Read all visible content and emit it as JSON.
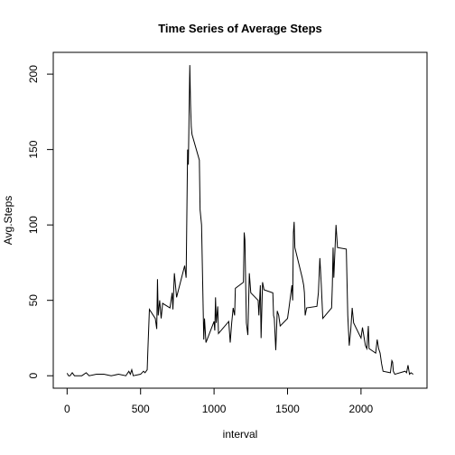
{
  "chart_data": {
    "type": "line",
    "title": "Time Series of Average Steps",
    "xlabel": "interval",
    "ylabel": "Avg.Steps",
    "x": [
      0,
      10,
      20,
      35,
      50,
      100,
      130,
      150,
      200,
      250,
      300,
      350,
      400,
      420,
      430,
      440,
      450,
      500,
      520,
      530,
      545,
      550,
      560,
      600,
      610,
      615,
      620,
      630,
      640,
      650,
      700,
      715,
      720,
      730,
      745,
      800,
      810,
      820,
      825,
      835,
      840,
      845,
      850,
      900,
      905,
      915,
      930,
      935,
      945,
      1000,
      1005,
      1010,
      1015,
      1025,
      1030,
      1100,
      1110,
      1120,
      1130,
      1140,
      1145,
      1200,
      1205,
      1210,
      1220,
      1230,
      1240,
      1250,
      1300,
      1305,
      1315,
      1320,
      1330,
      1340,
      1400,
      1405,
      1410,
      1420,
      1430,
      1440,
      1450,
      1500,
      1510,
      1530,
      1535,
      1540,
      1545,
      1550,
      1600,
      1610,
      1615,
      1620,
      1630,
      1700,
      1710,
      1720,
      1730,
      1740,
      1800,
      1805,
      1810,
      1815,
      1830,
      1840,
      1900,
      1910,
      1920,
      1930,
      1940,
      1950,
      2000,
      2010,
      2030,
      2040,
      2050,
      2055,
      2100,
      2110,
      2120,
      2130,
      2140,
      2150,
      2200,
      2210,
      2215,
      2220,
      2230,
      2300,
      2310,
      2320,
      2330,
      2340,
      2355
    ],
    "values": [
      1.7,
      0,
      0,
      2,
      0,
      0,
      2,
      0,
      1,
      1,
      0,
      1,
      0,
      3,
      1,
      4,
      0,
      1,
      3,
      2,
      4,
      18,
      44,
      38,
      31,
      64,
      40,
      50,
      38,
      48,
      45,
      55,
      44,
      68,
      52,
      73,
      65,
      150,
      140,
      206,
      180,
      165,
      160,
      143,
      110,
      100,
      24,
      38,
      22,
      36,
      30,
      52,
      35,
      46,
      28,
      36,
      22,
      35,
      45,
      40,
      58,
      62,
      95,
      90,
      35,
      27,
      68,
      55,
      50,
      40,
      60,
      25,
      62,
      57,
      55,
      40,
      38,
      17,
      43,
      40,
      33,
      38,
      45,
      60,
      50,
      95,
      102,
      85,
      65,
      60,
      55,
      40,
      45,
      46,
      55,
      78,
      60,
      38,
      45,
      60,
      85,
      65,
      100,
      85,
      84,
      40,
      20,
      30,
      45,
      35,
      25,
      32,
      20,
      18,
      33,
      18,
      15,
      24,
      18,
      15,
      8,
      3,
      2,
      10,
      9,
      3,
      1,
      3,
      2,
      7,
      1,
      2,
      1
    ],
    "color": "#000000",
    "xlim": [
      -94.2,
      2449.2
    ],
    "xticks": [
      0,
      500,
      1000,
      1500,
      2000
    ],
    "ylim": [
      -8.25,
      214.43
    ],
    "yticks": [
      0,
      50,
      100,
      150,
      200
    ]
  }
}
